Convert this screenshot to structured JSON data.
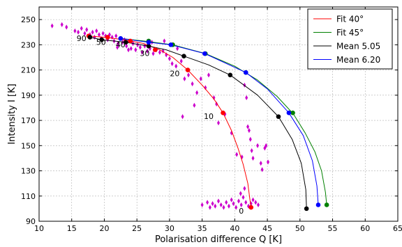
{
  "chart_data": {
    "type": "scatter",
    "xlabel": "Polarisation difference Q [K]",
    "ylabel": "Intensity I [K]",
    "xlim": [
      10,
      65
    ],
    "ylim": [
      90,
      260
    ],
    "xticks": [
      10,
      15,
      20,
      25,
      30,
      35,
      40,
      45,
      50,
      55,
      60,
      65
    ],
    "yticks": [
      90,
      110,
      130,
      150,
      170,
      190,
      210,
      230,
      250
    ],
    "grid": true,
    "legend_position": "top-right",
    "scatter": {
      "color": "#cc00cc",
      "marker": "diamond",
      "points": [
        [
          12,
          245
        ],
        [
          13.5,
          246
        ],
        [
          14.2,
          244
        ],
        [
          15.5,
          241
        ],
        [
          16,
          240
        ],
        [
          16.5,
          243
        ],
        [
          17,
          239
        ],
        [
          17.3,
          242
        ],
        [
          17.8,
          238
        ],
        [
          18.2,
          240
        ],
        [
          18.5,
          236
        ],
        [
          18.8,
          241
        ],
        [
          19.2,
          238
        ],
        [
          19.5,
          235
        ],
        [
          19.8,
          239
        ],
        [
          20.2,
          237
        ],
        [
          20.5,
          234
        ],
        [
          20.8,
          238
        ],
        [
          21.2,
          236
        ],
        [
          21.5,
          233
        ],
        [
          21.8,
          237
        ],
        [
          22.1,
          231
        ],
        [
          22.4,
          235
        ],
        [
          22.8,
          232
        ],
        [
          23.1,
          234
        ],
        [
          23.4,
          229
        ],
        [
          23.8,
          233
        ],
        [
          24.1,
          227
        ],
        [
          24.4,
          231
        ],
        [
          24.8,
          226
        ],
        [
          25.1,
          230
        ],
        [
          25.5,
          228
        ],
        [
          25.8,
          224
        ],
        [
          26.2,
          229
        ],
        [
          26.6,
          225
        ],
        [
          27,
          227
        ],
        [
          27.5,
          223
        ],
        [
          28,
          226
        ],
        [
          28.5,
          224
        ],
        [
          29,
          225
        ],
        [
          29.5,
          222
        ],
        [
          30,
          219
        ],
        [
          30.4,
          215
        ],
        [
          31,
          213
        ],
        [
          31.8,
          217
        ],
        [
          32.3,
          203
        ],
        [
          32.9,
          206
        ],
        [
          33.5,
          199
        ],
        [
          34.2,
          192
        ],
        [
          34.8,
          203
        ],
        [
          35.5,
          196
        ],
        [
          36,
          206
        ],
        [
          36.8,
          188
        ],
        [
          37.2,
          183
        ],
        [
          37.5,
          168
        ],
        [
          38.5,
          175
        ],
        [
          39.5,
          160
        ],
        [
          40.3,
          143
        ],
        [
          41.1,
          141
        ],
        [
          41.5,
          198
        ],
        [
          41.8,
          188
        ],
        [
          42,
          165
        ],
        [
          42.2,
          162
        ],
        [
          42.4,
          155
        ],
        [
          42.6,
          146
        ],
        [
          42.8,
          140
        ],
        [
          43.5,
          150
        ],
        [
          44,
          136
        ],
        [
          44.2,
          131
        ],
        [
          44.6,
          148
        ],
        [
          44.8,
          150
        ],
        [
          45.1,
          137
        ],
        [
          32,
          173
        ],
        [
          33.8,
          182
        ],
        [
          29.2,
          233
        ],
        [
          31.2,
          227
        ],
        [
          27.3,
          232
        ],
        [
          22,
          228
        ],
        [
          23.7,
          226
        ],
        [
          35,
          103
        ],
        [
          35.8,
          105
        ],
        [
          36.2,
          101
        ],
        [
          36.6,
          104
        ],
        [
          37,
          102
        ],
        [
          37.5,
          106
        ],
        [
          37.9,
          103
        ],
        [
          38.3,
          101
        ],
        [
          38.7,
          105
        ],
        [
          39.1,
          102
        ],
        [
          39.5,
          107
        ],
        [
          39.8,
          104
        ],
        [
          40.2,
          101
        ],
        [
          40.6,
          106
        ],
        [
          41,
          103
        ],
        [
          41.3,
          109
        ],
        [
          41.7,
          105
        ],
        [
          42.1,
          102
        ],
        [
          42.5,
          104
        ],
        [
          42.8,
          107
        ],
        [
          43.2,
          105
        ],
        [
          43.6,
          103
        ],
        [
          40.9,
          112
        ],
        [
          41.5,
          116
        ]
      ]
    },
    "series": [
      {
        "name": "Fit 40°",
        "color": "#ff0000",
        "x": [
          17.6,
          20,
          23,
          26,
          28.5,
          30.5,
          32.8,
          35,
          36.8,
          38.2,
          39.5,
          40.5,
          41.3,
          42,
          42.3,
          42.5
        ],
        "y": [
          237,
          236,
          234,
          231,
          226,
          220,
          210,
          198,
          187,
          176,
          162,
          148,
          135,
          120,
          108,
          101
        ],
        "marker_points": [
          [
            17.6,
            237
          ],
          [
            20.5,
            236
          ],
          [
            24,
            233
          ],
          [
            27.8,
            226
          ],
          [
            32.8,
            210
          ],
          [
            38.2,
            176
          ],
          [
            42.5,
            101
          ]
        ]
      },
      {
        "name": "Fit 45°",
        "color": "#008000",
        "x": [
          22.5,
          26,
          30.5,
          35.5,
          40,
          43.5,
          46.5,
          49,
          50.8,
          52.3,
          53.3,
          53.9,
          54.1
        ],
        "y": [
          235,
          233,
          230,
          223,
          213,
          202,
          189,
          175,
          160,
          145,
          130,
          113,
          103
        ],
        "marker_points": [
          [
            22.5,
            235
          ],
          [
            26.8,
            233
          ],
          [
            30.5,
            230
          ],
          [
            35.5,
            223
          ],
          [
            41.7,
            208
          ],
          [
            48.9,
            176
          ],
          [
            54.1,
            103
          ]
        ]
      },
      {
        "name": "Mean 5.05",
        "color": "#000000",
        "x": [
          17.8,
          19.6,
          23.3,
          26.8,
          29.5,
          32.2,
          36,
          39.3,
          43.5,
          46.7,
          48.8,
          50.2,
          50.9,
          51
        ],
        "y": [
          236,
          234,
          232,
          229,
          226,
          221,
          214,
          206,
          190,
          173,
          155,
          136,
          115,
          100
        ],
        "marker_points": [
          [
            17.8,
            236
          ],
          [
            19.6,
            234
          ],
          [
            23.3,
            232
          ],
          [
            26.8,
            229
          ],
          [
            32.2,
            221
          ],
          [
            39.3,
            206
          ],
          [
            46.7,
            173
          ],
          [
            51,
            100
          ]
        ]
      },
      {
        "name": "Mean 6.20",
        "color": "#0000ff",
        "x": [
          22.5,
          26.8,
          30.2,
          35.4,
          41.7,
          45,
          48.3,
          50.5,
          51.9,
          52.6,
          52.8
        ],
        "y": [
          235,
          232,
          230,
          223,
          208,
          195,
          176,
          158,
          138,
          118,
          103
        ],
        "marker_points": [
          [
            22.5,
            235
          ],
          [
            26.8,
            232
          ],
          [
            30.2,
            230
          ],
          [
            35.4,
            223
          ],
          [
            41.7,
            208
          ],
          [
            48.3,
            176
          ],
          [
            52.8,
            103
          ]
        ]
      }
    ],
    "annotations": [
      {
        "text": "90",
        "x": 16.5,
        "y": 233
      },
      {
        "text": "50",
        "x": 19.5,
        "y": 230
      },
      {
        "text": "40",
        "x": 22.5,
        "y": 228
      },
      {
        "text": "30",
        "x": 26.2,
        "y": 221
      },
      {
        "text": "20",
        "x": 30.8,
        "y": 205
      },
      {
        "text": "10",
        "x": 36,
        "y": 171
      },
      {
        "text": "0",
        "x": 41,
        "y": 96
      }
    ]
  }
}
